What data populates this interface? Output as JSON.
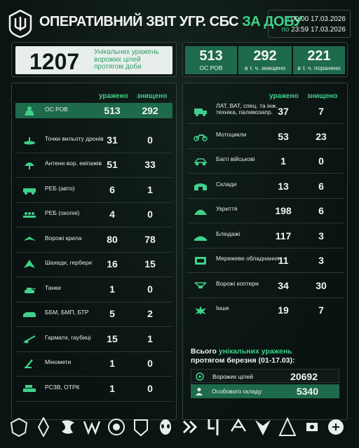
{
  "header": {
    "title_main": "ОПЕРАТИВНИЙ ЗВІТ УГР. СБС ",
    "title_accent": "ЗА ДОБУ",
    "date_from_prefix": "з ",
    "date_from": "00:00 17.03.2026",
    "date_to_prefix": "по ",
    "date_to": "23:59 17.03.2026"
  },
  "summary": {
    "unique_hits": "1207",
    "unique_hits_desc": "Унікальних уражень ворожих цілей протягом доби",
    "os_rov_total": "513",
    "os_rov_label": "ОС РОВ",
    "killed": "292",
    "killed_label": "в т. ч. знищено",
    "wounded": "221",
    "wounded_label": "в т. ч. поранено"
  },
  "columns": {
    "hit": "уражено",
    "destroyed": "знищено"
  },
  "left_rows": [
    {
      "icon": "soldier-icon",
      "label": "ОС РОВ",
      "hit": "513",
      "destroyed": "292"
    },
    {
      "icon": "drone-launch-icon",
      "label": "Точки вильоту дронів",
      "hit": "31",
      "destroyed": "0"
    },
    {
      "icon": "antenna-icon",
      "label": "Антени вор. екіпажів",
      "hit": "51",
      "destroyed": "33"
    },
    {
      "icon": "ew-vehicle-icon",
      "label": "РЕБ (авто)",
      "hit": "6",
      "destroyed": "1"
    },
    {
      "icon": "ew-trench-icon",
      "label": "РЕБ (окопні)",
      "hit": "4",
      "destroyed": "0"
    },
    {
      "icon": "wing-icon",
      "label": "Ворожі крила",
      "hit": "80",
      "destroyed": "78"
    },
    {
      "icon": "shahed-icon",
      "label": "Шахеди, гербери",
      "hit": "16",
      "destroyed": "15"
    },
    {
      "icon": "tank-icon",
      "label": "Танки",
      "hit": "1",
      "destroyed": "0"
    },
    {
      "icon": "ifv-icon",
      "label": "ББМ, БМП, БТР",
      "hit": "5",
      "destroyed": "2"
    },
    {
      "icon": "howitzer-icon",
      "label": "Гармати, гаубиці",
      "hit": "15",
      "destroyed": "1"
    },
    {
      "icon": "mortar-icon",
      "label": "Міномети",
      "hit": "1",
      "destroyed": "0"
    },
    {
      "icon": "mlrs-icon",
      "label": "РСЗВ, ОТРК",
      "hit": "1",
      "destroyed": "0"
    }
  ],
  "right_rows": [
    {
      "icon": "truck-icon",
      "label1": "ЛАТ, ВАТ, спец. та інж.",
      "label2": "техніка, паливозапр.",
      "hit": "37",
      "destroyed": "7"
    },
    {
      "icon": "motorcycle-icon",
      "label1": "Мотоцикли",
      "label2": "",
      "hit": "53",
      "destroyed": "23"
    },
    {
      "icon": "buggy-icon",
      "label1": "Баггі військові",
      "label2": "",
      "hit": "1",
      "destroyed": "0"
    },
    {
      "icon": "warehouse-icon",
      "label1": "Склади",
      "label2": "",
      "hit": "13",
      "destroyed": "6"
    },
    {
      "icon": "shelter-icon",
      "label1": "Укриття",
      "label2": "",
      "hit": "198",
      "destroyed": "6"
    },
    {
      "icon": "dugout-icon",
      "label1": "Бліндажі",
      "label2": "",
      "hit": "117",
      "destroyed": "3"
    },
    {
      "icon": "network-icon",
      "label1": "Мережеве обладнання",
      "label2": "",
      "hit": "11",
      "destroyed": "3"
    },
    {
      "icon": "quadcopter-icon",
      "label1": "Ворожі коптери",
      "label2": "",
      "hit": "34",
      "destroyed": "30"
    },
    {
      "icon": "explosion-icon",
      "label1": "Інше",
      "label2": "",
      "hit": "19",
      "destroyed": "7"
    }
  ],
  "totals": {
    "title_pre": "Всього ",
    "title_accent": "унікальних уражень",
    "title_line2": "протягом березня (01-17.03):",
    "targets_label": "Ворожих цілей",
    "targets_value": "20692",
    "personnel_label": "Особового складу",
    "personnel_value": "5340"
  },
  "colors": {
    "accent": "#3fd18a",
    "highlight": "#1e6a4c"
  },
  "footer_units": [
    "unit-emblem-1-icon",
    "unit-emblem-2-icon",
    "unit-emblem-3-icon",
    "unit-emblem-4-icon",
    "unit-emblem-5-icon",
    "unit-emblem-6-icon",
    "unit-emblem-7-icon",
    "unit-emblem-8-icon",
    "unit-emblem-9-icon",
    "unit-emblem-10-icon",
    "unit-emblem-11-icon",
    "unit-emblem-12-icon",
    "unit-emblem-13-icon",
    "unit-emblem-14-icon"
  ]
}
